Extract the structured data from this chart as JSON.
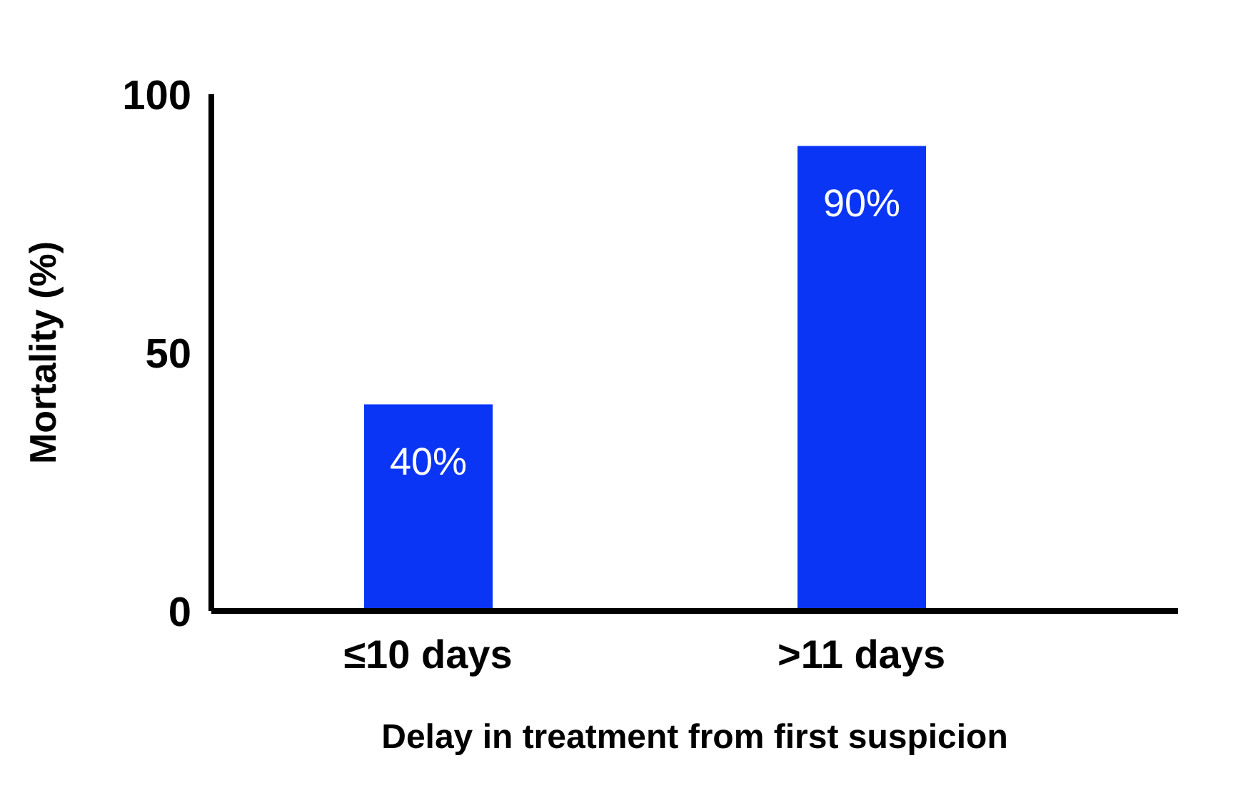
{
  "chart_data": {
    "type": "bar",
    "categories": [
      "≤10 days",
      ">11 days"
    ],
    "values": [
      40,
      90
    ],
    "color": "#0a35f5",
    "value_labels": [
      "40%",
      "90%"
    ],
    "ylim": [
      0,
      100
    ],
    "yticks": [
      0,
      50,
      100
    ],
    "ylabel": "Mortality (%)",
    "xlabel": "Delay in treatment from first suspicion",
    "grid": false,
    "legend": false
  }
}
